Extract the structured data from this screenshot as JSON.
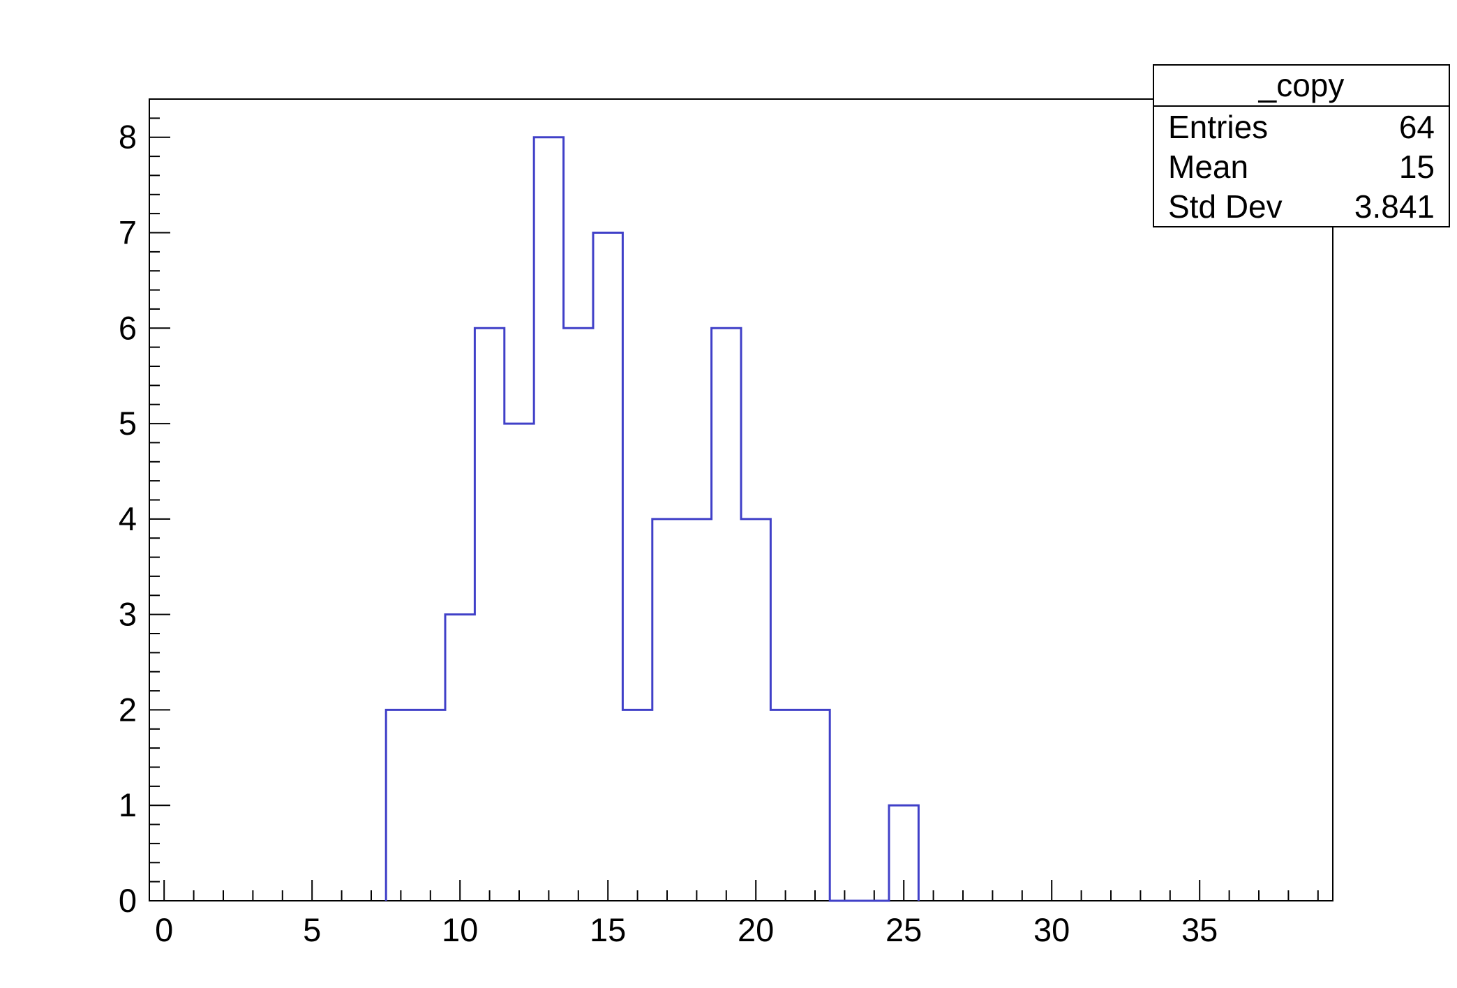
{
  "canvas": {
    "background": "#ffffff"
  },
  "chart_data": {
    "type": "histogram-step",
    "title": "",
    "xlabel": "",
    "ylabel": "",
    "xlim": [
      -0.5,
      39.5
    ],
    "ylim": [
      0,
      8.4
    ],
    "x_major_ticks": [
      0,
      5,
      10,
      15,
      20,
      25,
      30,
      35
    ],
    "x_minor_step": 1,
    "y_major_ticks": [
      0,
      1,
      2,
      3,
      4,
      5,
      6,
      7,
      8
    ],
    "y_minor_step": 0.2,
    "grid": false,
    "legend_position": "none",
    "line_color": "#4040C8",
    "axis_color": "#000000",
    "bins": [
      [
        7.5,
        8.5,
        2
      ],
      [
        8.5,
        9.5,
        2
      ],
      [
        9.5,
        10.5,
        3
      ],
      [
        10.5,
        11.5,
        6
      ],
      [
        11.5,
        12.5,
        5
      ],
      [
        12.5,
        13.5,
        8
      ],
      [
        13.5,
        14.5,
        6
      ],
      [
        14.5,
        15.5,
        7
      ],
      [
        15.5,
        16.5,
        2
      ],
      [
        16.5,
        17.5,
        4
      ],
      [
        17.5,
        18.5,
        4
      ],
      [
        18.5,
        19.5,
        6
      ],
      [
        19.5,
        20.5,
        4
      ],
      [
        20.5,
        21.5,
        2
      ],
      [
        21.5,
        22.5,
        2
      ],
      [
        24.5,
        25.5,
        1
      ]
    ],
    "stats": {
      "title": "_copy",
      "rows": [
        {
          "label": "Entries",
          "value": "64"
        },
        {
          "label": "Mean",
          "value": "15"
        },
        {
          "label": "Std Dev",
          "value": "3.841"
        }
      ]
    }
  }
}
